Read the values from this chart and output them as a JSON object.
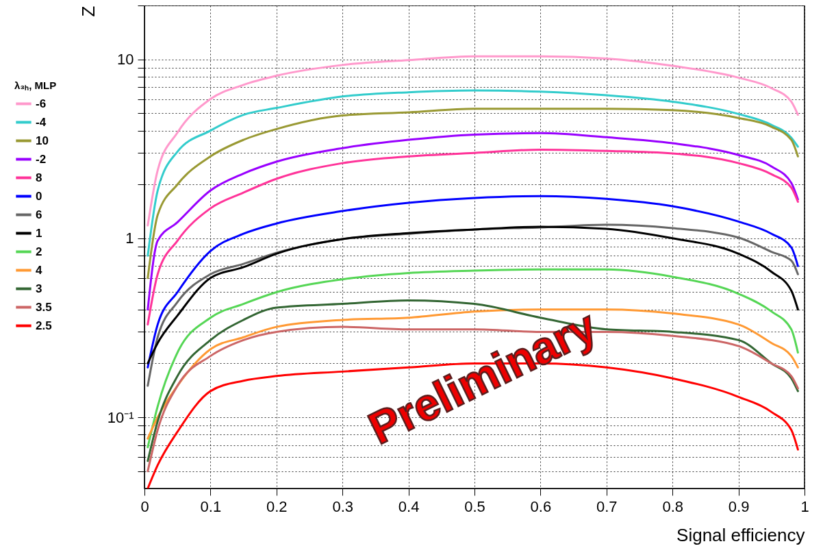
{
  "chart_data": {
    "type": "line",
    "xlabel": "Signal efficiency",
    "ylabel": "Z",
    "legend_title": "λ₃ₕ, MLP",
    "legend": "left",
    "grid": true,
    "log": true,
    "xlim": [
      0,
      1
    ],
    "xticks": [
      0,
      0.1,
      0.2,
      0.3,
      0.4,
      0.5,
      0.6,
      0.7,
      0.8,
      0.9,
      1
    ],
    "ylim": [
      0.04,
      20
    ],
    "yticks": [
      {
        "value": 0.05,
        "label": null
      },
      {
        "value": 0.06,
        "label": null
      },
      {
        "value": 0.07,
        "label": null
      },
      {
        "value": 0.08,
        "label": null
      },
      {
        "value": 0.09,
        "label": null
      },
      {
        "value": 0.1,
        "label": "10⁻¹"
      },
      {
        "value": 0.2,
        "label": null
      },
      {
        "value": 0.3,
        "label": null
      },
      {
        "value": 0.4,
        "label": null
      },
      {
        "value": 0.5,
        "label": null
      },
      {
        "value": 0.6,
        "label": null
      },
      {
        "value": 0.7,
        "label": null
      },
      {
        "value": 0.8,
        "label": null
      },
      {
        "value": 0.9,
        "label": null
      },
      1,
      {
        "value": 2,
        "label": null
      },
      {
        "value": 3,
        "label": null
      },
      {
        "value": 4,
        "label": null
      },
      {
        "value": 5,
        "label": null
      },
      {
        "value": 6,
        "label": null
      },
      {
        "value": 7,
        "label": null
      },
      {
        "value": 8,
        "label": null
      },
      {
        "value": 9,
        "label": null
      },
      10,
      {
        "value": 20,
        "label": null
      }
    ],
    "x": [
      0.005,
      0.02,
      0.05,
      0.1,
      0.15,
      0.2,
      0.3,
      0.4,
      0.5,
      0.6,
      0.7,
      0.8,
      0.9,
      0.95,
      0.98,
      0.99
    ],
    "series": [
      {
        "name": "-6",
        "color": "#ff99cc",
        "values": [
          1.18,
          2.4,
          3.9,
          6.0,
          7.2,
          8.1,
          9.3,
          9.9,
          10.4,
          10.4,
          10.1,
          9.2,
          7.9,
          6.9,
          5.8,
          4.9
        ]
      },
      {
        "name": "-4",
        "color": "#33cccc",
        "values": [
          0.8,
          1.85,
          3.05,
          4.0,
          4.9,
          5.35,
          6.2,
          6.55,
          6.7,
          6.6,
          6.3,
          5.8,
          4.95,
          4.3,
          3.65,
          3.25
        ]
      },
      {
        "name": "10",
        "color": "#999933",
        "values": [
          0.6,
          1.35,
          2.0,
          2.87,
          3.55,
          4.08,
          4.86,
          5.06,
          5.3,
          5.3,
          5.3,
          5.2,
          4.7,
          4.2,
          3.55,
          2.87
        ]
      },
      {
        "name": "-2",
        "color": "#9900ff",
        "values": [
          0.4,
          0.97,
          1.23,
          1.85,
          2.3,
          2.68,
          3.19,
          3.55,
          3.8,
          3.87,
          3.67,
          3.4,
          2.92,
          2.52,
          2.04,
          1.65
        ]
      },
      {
        "name": "8",
        "color": "#ff3399",
        "values": [
          0.33,
          0.63,
          0.97,
          1.47,
          1.8,
          2.15,
          2.63,
          2.87,
          3.0,
          3.13,
          3.08,
          2.98,
          2.63,
          2.28,
          1.92,
          1.6
        ]
      },
      {
        "name": "0",
        "color": "#0000ff",
        "values": [
          0.19,
          0.33,
          0.5,
          0.85,
          1.06,
          1.21,
          1.42,
          1.58,
          1.68,
          1.72,
          1.66,
          1.51,
          1.24,
          1.06,
          0.89,
          0.7
        ]
      },
      {
        "name": "6",
        "color": "#666666",
        "values": [
          0.15,
          0.28,
          0.44,
          0.63,
          0.72,
          0.83,
          0.99,
          1.06,
          1.12,
          1.15,
          1.19,
          1.14,
          1.01,
          0.84,
          0.75,
          0.63
        ]
      },
      {
        "name": "1",
        "color": "#000000",
        "values": [
          0.2,
          0.26,
          0.37,
          0.6,
          0.69,
          0.82,
          0.99,
          1.07,
          1.12,
          1.16,
          1.13,
          1.0,
          0.82,
          0.65,
          0.51,
          0.4
        ]
      },
      {
        "name": "2",
        "color": "#55d655",
        "values": [
          0.068,
          0.115,
          0.23,
          0.36,
          0.43,
          0.5,
          0.59,
          0.64,
          0.66,
          0.67,
          0.67,
          0.61,
          0.49,
          0.39,
          0.31,
          0.23
        ]
      },
      {
        "name": "4",
        "color": "#ff9933",
        "values": [
          0.076,
          0.1,
          0.15,
          0.24,
          0.28,
          0.32,
          0.35,
          0.36,
          0.39,
          0.4,
          0.4,
          0.38,
          0.33,
          0.26,
          0.22,
          0.19
        ]
      },
      {
        "name": "3",
        "color": "#336633",
        "values": [
          0.057,
          0.095,
          0.17,
          0.27,
          0.35,
          0.41,
          0.43,
          0.45,
          0.43,
          0.36,
          0.31,
          0.3,
          0.27,
          0.2,
          0.165,
          0.14
        ]
      },
      {
        "name": "3.5",
        "color": "#cc6666",
        "values": [
          0.05,
          0.085,
          0.15,
          0.22,
          0.27,
          0.3,
          0.32,
          0.31,
          0.31,
          0.3,
          0.3,
          0.285,
          0.25,
          0.2,
          0.17,
          0.145
        ]
      },
      {
        "name": "2.5",
        "color": "#ff0000",
        "values": [
          0.04,
          0.054,
          0.083,
          0.14,
          0.16,
          0.17,
          0.18,
          0.19,
          0.2,
          0.2,
          0.19,
          0.165,
          0.13,
          0.107,
          0.085,
          0.066
        ]
      }
    ],
    "annotations": [
      "Preliminary"
    ]
  }
}
